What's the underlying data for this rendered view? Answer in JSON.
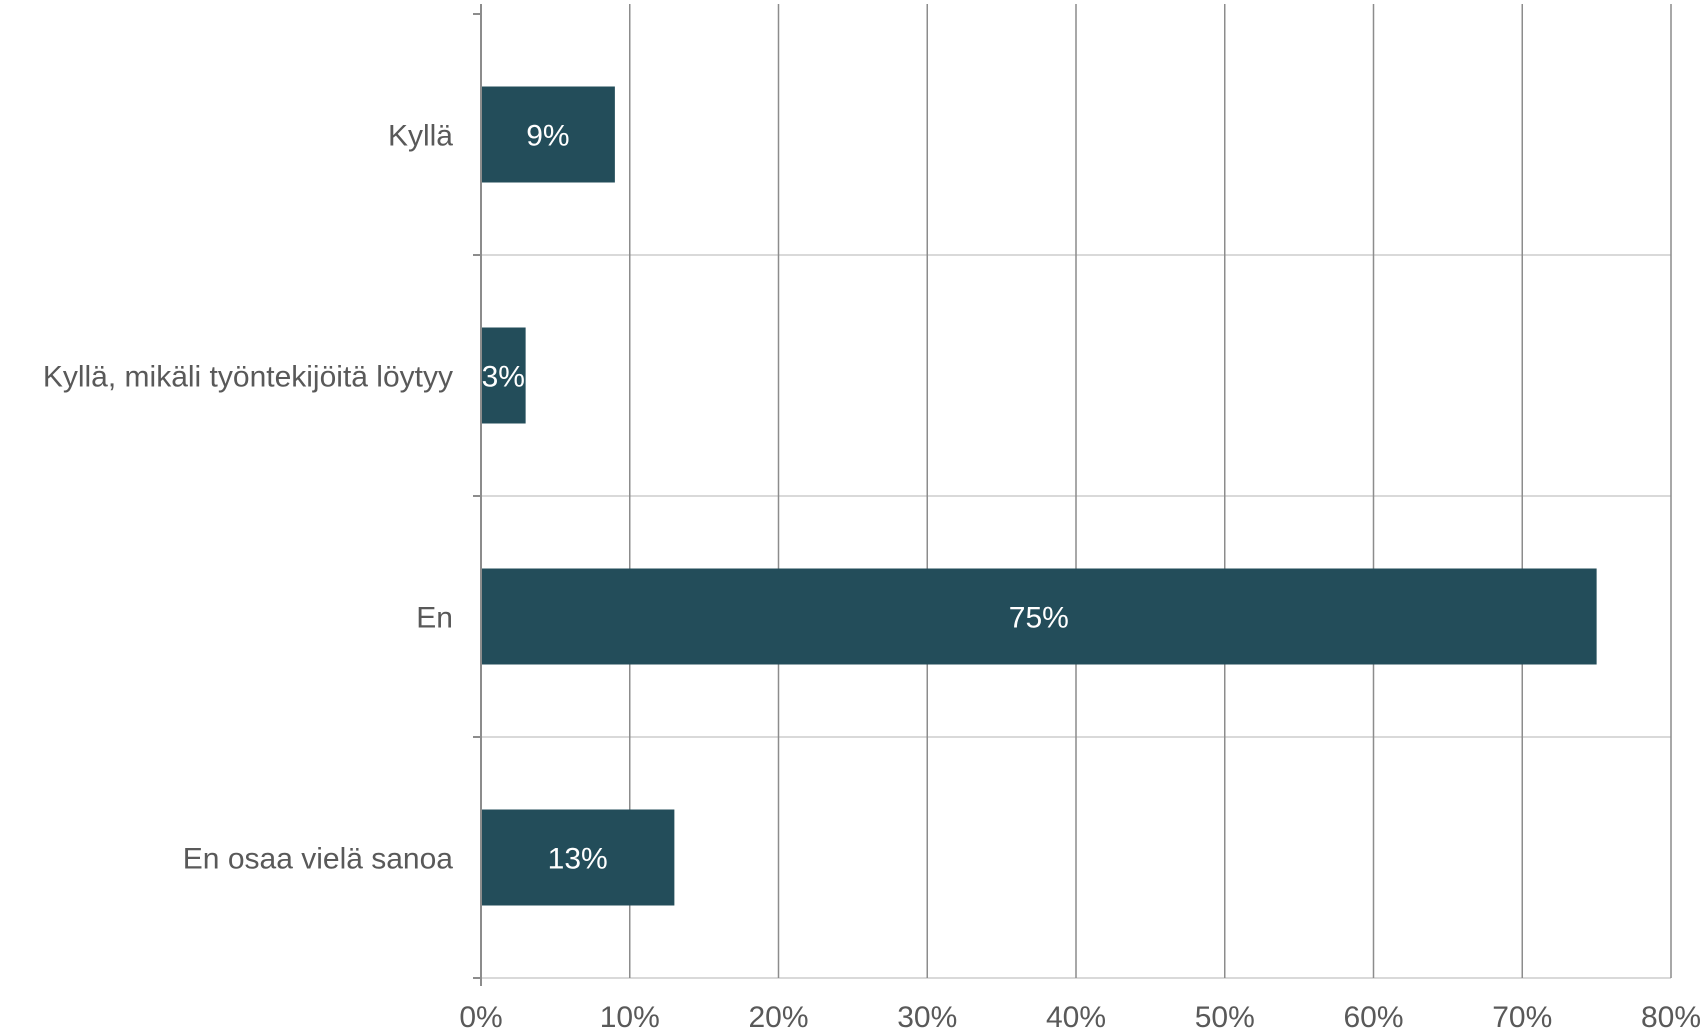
{
  "chart_data": {
    "type": "bar",
    "orientation": "horizontal",
    "title": "",
    "xlabel": "",
    "ylabel": "",
    "categories": [
      "Kyllä",
      "Kyllä, mikäli työntekijöitä löytyy",
      "En",
      "En osaa vielä sanoa"
    ],
    "values": [
      9,
      3,
      75,
      13
    ],
    "data_labels": [
      "9%",
      "3%",
      "75%",
      "13%"
    ],
    "xlim": [
      0,
      80
    ],
    "x_ticks": [
      0,
      10,
      20,
      30,
      40,
      50,
      60,
      70,
      80
    ],
    "x_tick_labels": [
      "0%",
      "10%",
      "20%",
      "30%",
      "40%",
      "50%",
      "60%",
      "70%",
      "80%"
    ],
    "grid": "vertical and horizontal",
    "legend": "none",
    "colors": {
      "bar": "#234d5a",
      "vertical_grid": "#8c8c8c",
      "horizontal_grid": "#d9d9d9",
      "axis": "#8c8c8c",
      "label_text": "#595959",
      "data_label_text": "#ffffff"
    }
  }
}
